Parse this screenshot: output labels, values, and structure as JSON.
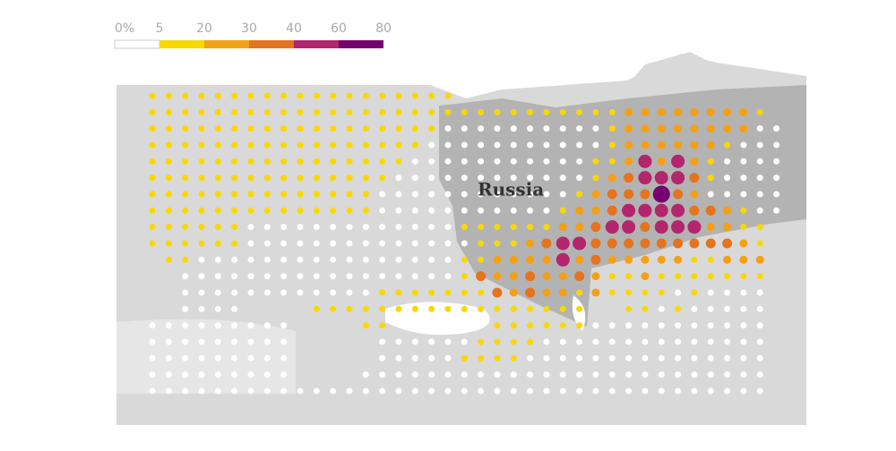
{
  "legend": {
    "labels": [
      "0%",
      "5",
      "20",
      "30",
      "40",
      "60",
      "80"
    ],
    "colors": [
      "#ffffff",
      "#f9d800",
      "#f5a012",
      "#e6731d",
      "#b3256c",
      "#76006f"
    ]
  },
  "label": "Russia",
  "dots": [
    [
      2,
      2,
      2,
      2,
      2,
      2,
      2,
      2,
      2,
      2,
      2,
      2,
      2,
      2,
      2,
      2,
      2,
      2,
      2,
      0,
      0,
      0,
      0,
      0,
      0,
      0,
      0,
      0,
      0,
      0,
      0,
      0,
      0,
      0,
      0,
      0,
      0,
      0,
      0
    ],
    [
      2,
      2,
      2,
      2,
      2,
      2,
      2,
      2,
      2,
      2,
      2,
      2,
      2,
      2,
      2,
      2,
      2,
      2,
      2,
      2,
      2,
      2,
      2,
      2,
      2,
      2,
      2,
      2,
      2,
      3,
      3,
      3,
      3,
      3,
      3,
      3,
      3,
      2,
      0
    ],
    [
      2,
      2,
      2,
      2,
      2,
      2,
      2,
      2,
      2,
      2,
      2,
      2,
      2,
      2,
      2,
      2,
      2,
      2,
      1,
      1,
      1,
      1,
      1,
      1,
      1,
      1,
      1,
      1,
      2,
      3,
      3,
      3,
      3,
      3,
      3,
      3,
      3,
      1,
      1
    ],
    [
      2,
      2,
      2,
      2,
      2,
      2,
      2,
      2,
      2,
      2,
      2,
      2,
      2,
      2,
      2,
      2,
      2,
      1,
      1,
      1,
      1,
      1,
      1,
      1,
      1,
      1,
      1,
      1,
      2,
      3,
      3,
      3,
      3,
      3,
      3,
      2,
      1,
      1,
      1
    ],
    [
      2,
      2,
      2,
      2,
      2,
      2,
      2,
      2,
      2,
      2,
      2,
      2,
      2,
      2,
      2,
      2,
      1,
      1,
      1,
      1,
      1,
      1,
      1,
      1,
      1,
      1,
      1,
      2,
      2,
      3,
      5,
      3,
      5,
      3,
      2,
      1,
      1,
      1,
      1
    ],
    [
      2,
      2,
      2,
      2,
      2,
      2,
      2,
      2,
      2,
      2,
      2,
      2,
      2,
      2,
      2,
      1,
      1,
      1,
      1,
      1,
      1,
      1,
      1,
      1,
      1,
      1,
      1,
      2,
      3,
      4,
      5,
      5,
      5,
      4,
      2,
      1,
      1,
      1,
      1
    ],
    [
      2,
      2,
      2,
      2,
      2,
      2,
      2,
      2,
      2,
      2,
      2,
      2,
      2,
      2,
      1,
      1,
      1,
      1,
      1,
      1,
      1,
      1,
      1,
      1,
      1,
      1,
      2,
      3,
      4,
      4,
      4,
      6,
      4,
      3,
      1,
      1,
      1,
      1,
      1
    ],
    [
      2,
      2,
      2,
      2,
      2,
      2,
      2,
      2,
      2,
      2,
      2,
      2,
      2,
      2,
      1,
      1,
      1,
      1,
      1,
      1,
      1,
      1,
      1,
      1,
      1,
      2,
      3,
      3,
      4,
      5,
      5,
      5,
      5,
      4,
      4,
      3,
      2,
      1,
      1
    ],
    [
      2,
      2,
      2,
      2,
      2,
      2,
      1,
      1,
      1,
      1,
      1,
      1,
      1,
      1,
      1,
      1,
      1,
      1,
      1,
      2,
      2,
      2,
      2,
      2,
      2,
      3,
      3,
      4,
      5,
      5,
      4,
      5,
      5,
      5,
      3,
      3,
      2,
      2,
      0
    ],
    [
      2,
      2,
      2,
      2,
      2,
      2,
      1,
      1,
      1,
      1,
      1,
      1,
      1,
      1,
      1,
      1,
      1,
      1,
      1,
      1,
      2,
      2,
      2,
      3,
      4,
      5,
      5,
      4,
      4,
      4,
      4,
      4,
      4,
      4,
      4,
      4,
      3,
      2,
      0
    ],
    [
      0,
      2,
      2,
      1,
      1,
      1,
      1,
      1,
      1,
      1,
      1,
      1,
      1,
      1,
      1,
      1,
      1,
      1,
      1,
      2,
      2,
      3,
      3,
      3,
      3,
      5,
      3,
      4,
      3,
      3,
      3,
      3,
      3,
      2,
      2,
      3,
      3,
      3,
      0
    ],
    [
      0,
      0,
      1,
      1,
      1,
      1,
      1,
      1,
      1,
      1,
      1,
      1,
      1,
      1,
      1,
      1,
      1,
      1,
      1,
      2,
      4,
      3,
      3,
      4,
      3,
      3,
      4,
      3,
      2,
      2,
      3,
      2,
      2,
      2,
      2,
      2,
      2,
      2,
      0
    ],
    [
      0,
      0,
      1,
      1,
      1,
      1,
      1,
      1,
      1,
      1,
      1,
      1,
      1,
      1,
      2,
      2,
      2,
      2,
      2,
      2,
      2,
      4,
      3,
      4,
      3,
      3,
      2,
      3,
      2,
      2,
      2,
      2,
      1,
      2,
      1,
      1,
      1,
      1,
      0
    ],
    [
      0,
      0,
      1,
      1,
      1,
      1,
      0,
      0,
      0,
      0,
      2,
      2,
      2,
      2,
      2,
      2,
      2,
      2,
      2,
      2,
      2,
      2,
      2,
      2,
      2,
      2,
      2,
      0,
      0,
      2,
      2,
      1,
      2,
      1,
      1,
      1,
      1,
      1,
      0
    ],
    [
      1,
      1,
      1,
      1,
      1,
      1,
      1,
      1,
      1,
      0,
      0,
      0,
      0,
      2,
      2,
      0,
      0,
      0,
      0,
      0,
      0,
      2,
      2,
      2,
      2,
      2,
      2,
      1,
      1,
      1,
      1,
      1,
      1,
      1,
      1,
      1,
      1,
      1,
      0
    ],
    [
      1,
      1,
      1,
      1,
      1,
      1,
      1,
      1,
      1,
      0,
      0,
      0,
      0,
      0,
      1,
      1,
      1,
      1,
      1,
      1,
      2,
      2,
      2,
      2,
      1,
      1,
      1,
      1,
      1,
      1,
      1,
      1,
      1,
      1,
      1,
      1,
      1,
      1,
      0
    ],
    [
      1,
      1,
      1,
      1,
      1,
      1,
      1,
      1,
      1,
      0,
      0,
      0,
      0,
      0,
      1,
      1,
      1,
      1,
      1,
      2,
      2,
      2,
      2,
      1,
      1,
      1,
      1,
      1,
      1,
      1,
      1,
      1,
      1,
      1,
      1,
      1,
      1,
      1,
      0
    ],
    [
      1,
      1,
      1,
      1,
      1,
      1,
      1,
      1,
      1,
      0,
      0,
      0,
      0,
      1,
      1,
      1,
      1,
      1,
      1,
      1,
      1,
      1,
      1,
      1,
      1,
      1,
      1,
      1,
      1,
      1,
      1,
      1,
      1,
      1,
      1,
      1,
      1,
      1,
      0
    ],
    [
      1,
      1,
      1,
      1,
      1,
      1,
      1,
      1,
      1,
      1,
      1,
      1,
      1,
      1,
      1,
      1,
      1,
      1,
      1,
      1,
      1,
      1,
      1,
      1,
      1,
      1,
      1,
      1,
      1,
      1,
      1,
      1,
      1,
      1,
      1,
      1,
      1,
      1,
      0
    ]
  ]
}
